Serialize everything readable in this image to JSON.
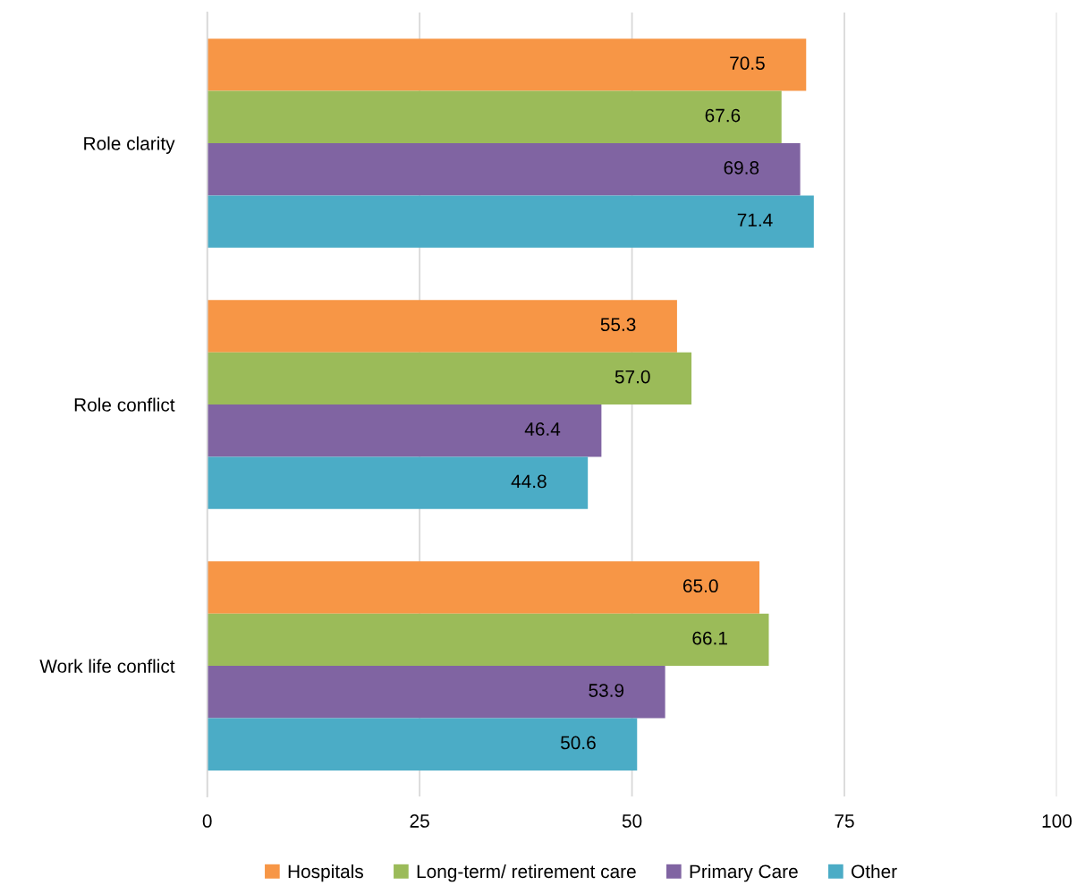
{
  "chart_data": {
    "type": "bar",
    "orientation": "horizontal",
    "categories": [
      "Role clarity",
      "Role conflict",
      "Work life conflict"
    ],
    "series": [
      {
        "name": "Hospitals",
        "color": "#f79646",
        "values": [
          70.5,
          55.3,
          65.0
        ],
        "value_labels": [
          "70.5",
          "55.3",
          "65.0"
        ]
      },
      {
        "name": "Long-term/ retirement care",
        "color": "#9bbb59",
        "values": [
          67.6,
          57.0,
          66.1
        ],
        "value_labels": [
          "67.6",
          "57.0",
          "66.1"
        ]
      },
      {
        "name": "Primary Care",
        "color": "#8064a2",
        "values": [
          69.8,
          46.4,
          53.9
        ],
        "value_labels": [
          "69.8",
          "46.4",
          "53.9"
        ]
      },
      {
        "name": "Other",
        "color": "#4bacc6",
        "values": [
          71.4,
          44.8,
          50.6
        ],
        "value_labels": [
          "71.4",
          "44.8",
          "50.6"
        ]
      }
    ],
    "xlim": [
      0,
      100
    ],
    "xticks": [
      0,
      25,
      50,
      75,
      100
    ],
    "grid": "x",
    "legend": "bottom"
  }
}
